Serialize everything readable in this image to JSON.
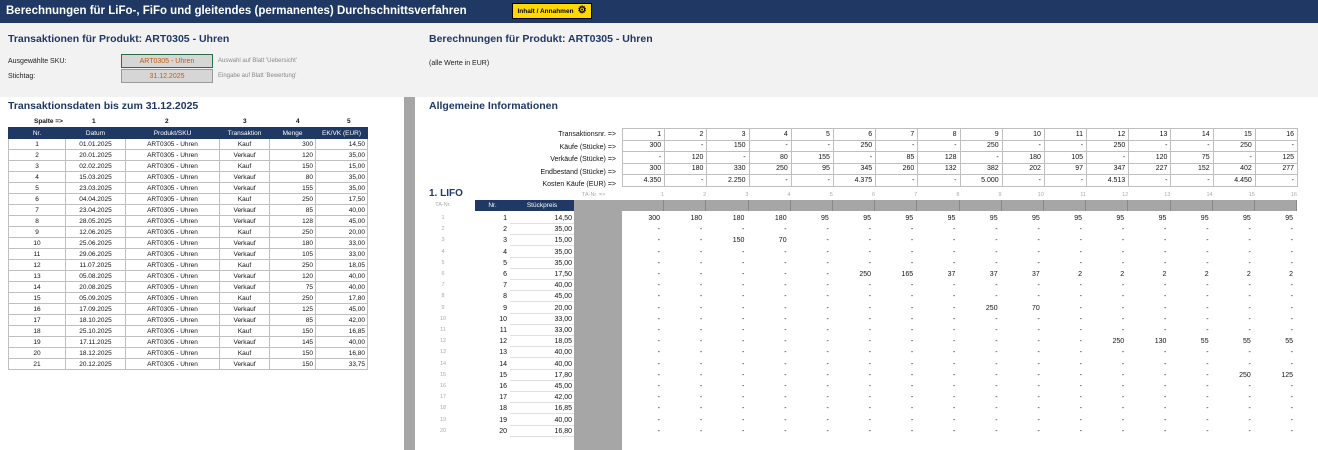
{
  "banner": {
    "title": "Berechnungen für LiFo-, FiFo und gleitendes (permanentes) Durchschnittsverfahren",
    "button": "Inhalt / Annahmen"
  },
  "left": {
    "title": "Transaktionen für Produkt: ART0305 - Uhren",
    "sku_label": "Ausgewählte SKU:",
    "sku_value": "ART0305 - Uhren",
    "sku_hint": "Auswahl auf Blatt 'Uebersicht'",
    "date_label": "Stichtag:",
    "date_value": "31.12.2025",
    "date_hint": "Eingabe auf Blatt 'Bewertung'",
    "table_title": "Transaktionsdaten bis zum 31.12.2025",
    "spalte_label": "Spalte =>",
    "col_numbers": [
      "1",
      "2",
      "3",
      "4",
      "5"
    ],
    "headers": [
      "Nr.",
      "Datum",
      "Produkt/SKU",
      "Transaktion",
      "Menge",
      "EK/VK (EUR)"
    ],
    "rows": [
      [
        "1",
        "01.01.2025",
        "ART0305 - Uhren",
        "Kauf",
        "300",
        "14,50"
      ],
      [
        "2",
        "20.01.2025",
        "ART0305 - Uhren",
        "Verkauf",
        "120",
        "35,00"
      ],
      [
        "3",
        "02.02.2025",
        "ART0305 - Uhren",
        "Kauf",
        "150",
        "15,00"
      ],
      [
        "4",
        "15.03.2025",
        "ART0305 - Uhren",
        "Verkauf",
        "80",
        "35,00"
      ],
      [
        "5",
        "23.03.2025",
        "ART0305 - Uhren",
        "Verkauf",
        "155",
        "35,00"
      ],
      [
        "6",
        "04.04.2025",
        "ART0305 - Uhren",
        "Kauf",
        "250",
        "17,50"
      ],
      [
        "7",
        "23.04.2025",
        "ART0305 - Uhren",
        "Verkauf",
        "85",
        "40,00"
      ],
      [
        "8",
        "28.05.2025",
        "ART0305 - Uhren",
        "Verkauf",
        "128",
        "45,00"
      ],
      [
        "9",
        "12.06.2025",
        "ART0305 - Uhren",
        "Kauf",
        "250",
        "20,00"
      ],
      [
        "10",
        "25.06.2025",
        "ART0305 - Uhren",
        "Verkauf",
        "180",
        "33,00"
      ],
      [
        "11",
        "29.06.2025",
        "ART0305 - Uhren",
        "Verkauf",
        "105",
        "33,00"
      ],
      [
        "12",
        "11.07.2025",
        "ART0305 - Uhren",
        "Kauf",
        "250",
        "18,05"
      ],
      [
        "13",
        "05.08.2025",
        "ART0305 - Uhren",
        "Verkauf",
        "120",
        "40,00"
      ],
      [
        "14",
        "20.08.2025",
        "ART0305 - Uhren",
        "Verkauf",
        "75",
        "40,00"
      ],
      [
        "15",
        "05.09.2025",
        "ART0305 - Uhren",
        "Kauf",
        "250",
        "17,80"
      ],
      [
        "16",
        "17.09.2025",
        "ART0305 - Uhren",
        "Verkauf",
        "125",
        "45,00"
      ],
      [
        "17",
        "18.10.2025",
        "ART0305 - Uhren",
        "Verkauf",
        "85",
        "42,00"
      ],
      [
        "18",
        "25.10.2025",
        "ART0305 - Uhren",
        "Kauf",
        "150",
        "16,85"
      ],
      [
        "19",
        "17.11.2025",
        "ART0305 - Uhren",
        "Verkauf",
        "145",
        "40,00"
      ],
      [
        "20",
        "18.12.2025",
        "ART0305 - Uhren",
        "Kauf",
        "150",
        "16,80"
      ],
      [
        "21",
        "20.12.2025",
        "ART0305 - Uhren",
        "Verkauf",
        "150",
        "33,75"
      ]
    ]
  },
  "right": {
    "title": "Berechnungen für Produkt: ART0305 - Uhren",
    "note": "(alle Werte in EUR)",
    "info_title": "Allgemeine Informationen",
    "info_labels": [
      "Transaktionsnr. =>",
      "Käufe (Stücke) =>",
      "Verkäufe (Stücke) =>",
      "Endbestand (Stücke) =>",
      "Kosten Käufe (EUR) =>"
    ],
    "info_rows": [
      [
        "1",
        "2",
        "3",
        "4",
        "5",
        "6",
        "7",
        "8",
        "9",
        "10",
        "11",
        "12",
        "13",
        "14",
        "15",
        "16"
      ],
      [
        "300",
        "-",
        "150",
        "-",
        "-",
        "250",
        "-",
        "-",
        "250",
        "-",
        "-",
        "250",
        "-",
        "-",
        "250",
        "-"
      ],
      [
        "-",
        "120",
        "-",
        "80",
        "155",
        "-",
        "85",
        "128",
        "-",
        "180",
        "105",
        "-",
        "120",
        "75",
        "-",
        "125"
      ],
      [
        "300",
        "180",
        "330",
        "250",
        "95",
        "345",
        "260",
        "132",
        "382",
        "202",
        "97",
        "347",
        "227",
        "152",
        "402",
        "277"
      ],
      [
        "4.350",
        "-",
        "2.250",
        "-",
        "-",
        "4.375",
        "-",
        "-",
        "5.000",
        "-",
        "-",
        "4.513",
        "-",
        "-",
        "4.450",
        "-"
      ]
    ],
    "ta_label": "TA-Nr. =>",
    "ta_numbers": [
      "1",
      "2",
      "3",
      "4",
      "5",
      "6",
      "7",
      "8",
      "9",
      "10",
      "11",
      "12",
      "13",
      "14",
      "15",
      "16"
    ],
    "lifo_title": "1. LIFO",
    "ta_left": "TA-Nr.",
    "lifo_headers": [
      "Nr.",
      "Stückpreis"
    ],
    "lifo_nr": [
      "1",
      "2",
      "3",
      "4",
      "5",
      "6",
      "7",
      "8",
      "9",
      "10",
      "11",
      "12",
      "13",
      "14",
      "15",
      "16",
      "17",
      "18",
      "19",
      "20"
    ],
    "lifo_prices": [
      "14,50",
      "35,00",
      "15,00",
      "35,00",
      "35,00",
      "17,50",
      "40,00",
      "45,00",
      "20,00",
      "33,00",
      "33,00",
      "18,05",
      "40,00",
      "40,00",
      "17,80",
      "45,00",
      "42,00",
      "16,85",
      "40,00",
      "16,80"
    ],
    "lifo_grid": [
      [
        "300",
        "180",
        "180",
        "180",
        "95",
        "95",
        "95",
        "95",
        "95",
        "95",
        "95",
        "95",
        "95",
        "95",
        "95",
        "95"
      ],
      [
        "-",
        "-",
        "-",
        "-",
        "-",
        "-",
        "-",
        "-",
        "-",
        "-",
        "-",
        "-",
        "-",
        "-",
        "-",
        "-"
      ],
      [
        "-",
        "-",
        "150",
        "70",
        "-",
        "-",
        "-",
        "-",
        "-",
        "-",
        "-",
        "-",
        "-",
        "-",
        "-",
        "-"
      ],
      [
        "-",
        "-",
        "-",
        "-",
        "-",
        "-",
        "-",
        "-",
        "-",
        "-",
        "-",
        "-",
        "-",
        "-",
        "-",
        "-"
      ],
      [
        "-",
        "-",
        "-",
        "-",
        "-",
        "-",
        "-",
        "-",
        "-",
        "-",
        "-",
        "-",
        "-",
        "-",
        "-",
        "-"
      ],
      [
        "-",
        "-",
        "-",
        "-",
        "-",
        "250",
        "165",
        "37",
        "37",
        "37",
        "2",
        "2",
        "2",
        "2",
        "2",
        "2"
      ],
      [
        "-",
        "-",
        "-",
        "-",
        "-",
        "-",
        "-",
        "-",
        "-",
        "-",
        "-",
        "-",
        "-",
        "-",
        "-",
        "-"
      ],
      [
        "-",
        "-",
        "-",
        "-",
        "-",
        "-",
        "-",
        "-",
        "-",
        "-",
        "-",
        "-",
        "-",
        "-",
        "-",
        "-"
      ],
      [
        "-",
        "-",
        "-",
        "-",
        "-",
        "-",
        "-",
        "-",
        "250",
        "70",
        "-",
        "-",
        "-",
        "-",
        "-",
        "-"
      ],
      [
        "-",
        "-",
        "-",
        "-",
        "-",
        "-",
        "-",
        "-",
        "-",
        "-",
        "-",
        "-",
        "-",
        "-",
        "-",
        "-"
      ],
      [
        "-",
        "-",
        "-",
        "-",
        "-",
        "-",
        "-",
        "-",
        "-",
        "-",
        "-",
        "-",
        "-",
        "-",
        "-",
        "-"
      ],
      [
        "-",
        "-",
        "-",
        "-",
        "-",
        "-",
        "-",
        "-",
        "-",
        "-",
        "-",
        "250",
        "130",
        "55",
        "55",
        "55"
      ],
      [
        "-",
        "-",
        "-",
        "-",
        "-",
        "-",
        "-",
        "-",
        "-",
        "-",
        "-",
        "-",
        "-",
        "-",
        "-",
        "-"
      ],
      [
        "-",
        "-",
        "-",
        "-",
        "-",
        "-",
        "-",
        "-",
        "-",
        "-",
        "-",
        "-",
        "-",
        "-",
        "-",
        "-"
      ],
      [
        "-",
        "-",
        "-",
        "-",
        "-",
        "-",
        "-",
        "-",
        "-",
        "-",
        "-",
        "-",
        "-",
        "-",
        "250",
        "125"
      ],
      [
        "-",
        "-",
        "-",
        "-",
        "-",
        "-",
        "-",
        "-",
        "-",
        "-",
        "-",
        "-",
        "-",
        "-",
        "-",
        "-"
      ],
      [
        "-",
        "-",
        "-",
        "-",
        "-",
        "-",
        "-",
        "-",
        "-",
        "-",
        "-",
        "-",
        "-",
        "-",
        "-",
        "-"
      ],
      [
        "-",
        "-",
        "-",
        "-",
        "-",
        "-",
        "-",
        "-",
        "-",
        "-",
        "-",
        "-",
        "-",
        "-",
        "-",
        "-"
      ],
      [
        "-",
        "-",
        "-",
        "-",
        "-",
        "-",
        "-",
        "-",
        "-",
        "-",
        "-",
        "-",
        "-",
        "-",
        "-",
        "-"
      ],
      [
        "-",
        "-",
        "-",
        "-",
        "-",
        "-",
        "-",
        "-",
        "-",
        "-",
        "-",
        "-",
        "-",
        "-",
        "-",
        "-"
      ]
    ]
  }
}
